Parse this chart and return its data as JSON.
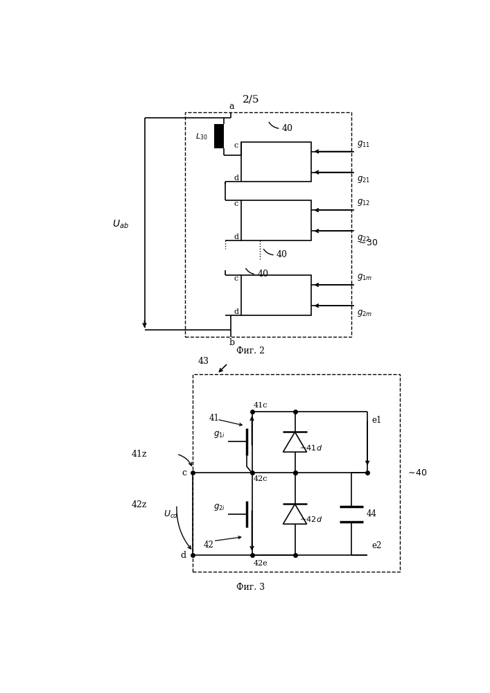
{
  "fig_width": 7.07,
  "fig_height": 10.0,
  "bg_color": "#ffffff",
  "page_label": "2/5",
  "fig2_caption": "Фиг. 2",
  "fig3_caption": "Фиг. 3",
  "lw": 1.2
}
